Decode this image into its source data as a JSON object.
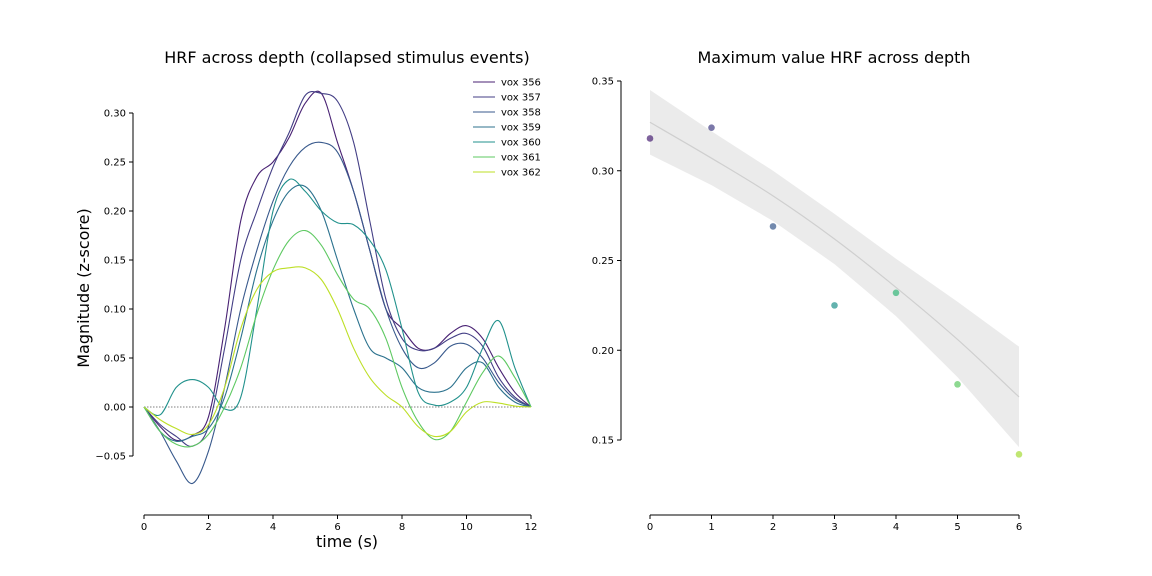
{
  "chart_data": [
    {
      "type": "line",
      "title": "HRF across depth (collapsed stimulus events)",
      "xlabel": "time (s)",
      "ylabel": "Magnitude (z-score)",
      "xlim": [
        0,
        12
      ],
      "ylim": [
        -0.05,
        0.3
      ],
      "x_ticks": [
        0,
        2,
        4,
        6,
        8,
        10,
        12
      ],
      "y_ticks": [
        -0.05,
        0.0,
        0.05,
        0.1,
        0.15,
        0.2,
        0.25,
        0.3
      ],
      "x_tick_labels": [
        "0",
        "2",
        "4",
        "6",
        "8",
        "10",
        "12"
      ],
      "y_tick_labels": [
        "−0.05",
        "0.00",
        "0.05",
        "0.10",
        "0.15",
        "0.20",
        "0.25",
        "0.30"
      ],
      "legend_position": "top-right",
      "baseline": 0,
      "series": [
        {
          "name": "vox 356",
          "color": "#482173",
          "x": [
            0,
            0.5,
            1,
            1.5,
            2,
            2.5,
            3,
            3.5,
            4,
            4.5,
            5,
            5.5,
            6,
            6.5,
            7,
            7.5,
            8,
            8.5,
            9,
            9.5,
            10,
            10.5,
            11,
            11.5,
            12
          ],
          "y": [
            0,
            -0.02,
            -0.034,
            -0.029,
            -0.01,
            0.08,
            0.19,
            0.235,
            0.25,
            0.275,
            0.31,
            0.32,
            0.27,
            0.22,
            0.16,
            0.1,
            0.08,
            0.06,
            0.06,
            0.075,
            0.083,
            0.07,
            0.04,
            0.015,
            0
          ]
        },
        {
          "name": "vox 357",
          "color": "#433e85",
          "x": [
            0,
            0.5,
            1,
            1.5,
            2,
            2.5,
            3,
            3.5,
            4,
            4.5,
            5,
            5.5,
            6,
            6.5,
            7,
            7.5,
            8,
            8.5,
            9,
            9.5,
            10,
            10.5,
            11,
            11.5,
            12
          ],
          "y": [
            0,
            -0.018,
            -0.03,
            -0.04,
            -0.02,
            0.06,
            0.15,
            0.2,
            0.245,
            0.28,
            0.318,
            0.32,
            0.312,
            0.27,
            0.19,
            0.11,
            0.07,
            0.058,
            0.06,
            0.07,
            0.075,
            0.062,
            0.03,
            0.01,
            0
          ]
        },
        {
          "name": "vox 358",
          "color": "#38598c",
          "x": [
            0,
            0.5,
            1,
            1.5,
            2,
            2.5,
            3,
            3.5,
            4,
            4.5,
            5,
            5.5,
            6,
            6.5,
            7,
            7.5,
            8,
            8.5,
            9,
            9.5,
            10,
            10.5,
            11,
            11.5,
            12
          ],
          "y": [
            0,
            -0.025,
            -0.055,
            -0.078,
            -0.045,
            0.02,
            0.1,
            0.16,
            0.21,
            0.245,
            0.265,
            0.27,
            0.26,
            0.22,
            0.16,
            0.1,
            0.06,
            0.04,
            0.045,
            0.062,
            0.064,
            0.05,
            0.025,
            0.008,
            0
          ]
        },
        {
          "name": "vox 359",
          "color": "#2c728e",
          "x": [
            0,
            0.5,
            1,
            1.5,
            2,
            2.5,
            3,
            3.5,
            4,
            4.5,
            5,
            5.5,
            6,
            6.5,
            7,
            7.5,
            8,
            8.5,
            9,
            9.5,
            10,
            10.5,
            11,
            11.5,
            12
          ],
          "y": [
            0,
            -0.025,
            -0.035,
            -0.03,
            -0.022,
            0.01,
            0.07,
            0.14,
            0.19,
            0.22,
            0.225,
            0.2,
            0.15,
            0.1,
            0.06,
            0.05,
            0.04,
            0.02,
            0.015,
            0.02,
            0.04,
            0.045,
            0.02,
            0.005,
            0
          ]
        },
        {
          "name": "vox 360",
          "color": "#21918c",
          "x": [
            0,
            0.5,
            1,
            1.5,
            2,
            2.5,
            3,
            3.5,
            4,
            4.5,
            5,
            5.5,
            6,
            6.5,
            7,
            7.5,
            8,
            8.5,
            9,
            9.5,
            10,
            10.5,
            11,
            11.5,
            12
          ],
          "y": [
            0,
            -0.008,
            0.02,
            0.028,
            0.02,
            -0.002,
            0.01,
            0.1,
            0.2,
            0.232,
            0.22,
            0.2,
            0.188,
            0.186,
            0.17,
            0.14,
            0.08,
            0.015,
            0.002,
            0.005,
            0.02,
            0.06,
            0.088,
            0.04,
            0
          ]
        },
        {
          "name": "vox 361",
          "color": "#5ec962",
          "x": [
            0,
            0.5,
            1,
            1.5,
            2,
            2.5,
            3,
            3.5,
            4,
            4.5,
            5,
            5.5,
            6,
            6.5,
            7,
            7.5,
            8,
            8.5,
            9,
            9.5,
            10,
            10.5,
            11,
            11.5,
            12
          ],
          "y": [
            0,
            -0.025,
            -0.038,
            -0.04,
            -0.028,
            0.0,
            0.04,
            0.095,
            0.14,
            0.17,
            0.18,
            0.165,
            0.135,
            0.11,
            0.1,
            0.07,
            0.02,
            -0.015,
            -0.033,
            -0.025,
            0.005,
            0.035,
            0.052,
            0.03,
            0
          ]
        },
        {
          "name": "vox 362",
          "color": "#bddf26",
          "x": [
            0,
            0.5,
            1,
            1.5,
            2,
            2.5,
            3,
            3.5,
            4,
            4.5,
            5,
            5.5,
            6,
            6.5,
            7,
            7.5,
            8,
            8.5,
            9,
            9.5,
            10,
            10.5,
            11,
            11.5,
            12
          ],
          "y": [
            0,
            -0.013,
            -0.022,
            -0.028,
            -0.018,
            0.02,
            0.08,
            0.12,
            0.138,
            0.142,
            0.142,
            0.13,
            0.1,
            0.06,
            0.03,
            0.012,
            0.0,
            -0.02,
            -0.03,
            -0.025,
            -0.005,
            0.005,
            0.004,
            0.001,
            0
          ]
        }
      ]
    },
    {
      "type": "scatter",
      "title": "Maximum value HRF across depth",
      "xlabel": "",
      "ylabel": "",
      "xlim": [
        0,
        6
      ],
      "ylim": [
        0.15,
        0.35
      ],
      "x_ticks": [
        0,
        1,
        2,
        3,
        4,
        5,
        6
      ],
      "y_ticks": [
        0.15,
        0.2,
        0.25,
        0.3,
        0.35
      ],
      "x_tick_labels": [
        "0",
        "1",
        "2",
        "3",
        "4",
        "5",
        "6"
      ],
      "y_tick_labels": [
        "0.15",
        "0.20",
        "0.25",
        "0.30",
        "0.35"
      ],
      "points": [
        {
          "x": 0,
          "y": 0.318,
          "color": "#482173"
        },
        {
          "x": 1,
          "y": 0.324,
          "color": "#433e85"
        },
        {
          "x": 2,
          "y": 0.269,
          "color": "#38598c"
        },
        {
          "x": 3,
          "y": 0.225,
          "color": "#21918c"
        },
        {
          "x": 4,
          "y": 0.232,
          "color": "#35b779"
        },
        {
          "x": 5,
          "y": 0.181,
          "color": "#5ec962"
        },
        {
          "x": 6,
          "y": 0.142,
          "color": "#a5db36"
        }
      ],
      "fit": {
        "color": "#cfcfcf",
        "band_color": "#ebebeb",
        "x": [
          0,
          1,
          2,
          3,
          4,
          5,
          6
        ],
        "y": [
          0.327,
          0.307,
          0.286,
          0.262,
          0.235,
          0.206,
          0.174
        ],
        "lower": [
          0.309,
          0.292,
          0.272,
          0.248,
          0.219,
          0.185,
          0.146
        ],
        "upper": [
          0.345,
          0.322,
          0.3,
          0.276,
          0.251,
          0.227,
          0.202
        ]
      }
    }
  ]
}
